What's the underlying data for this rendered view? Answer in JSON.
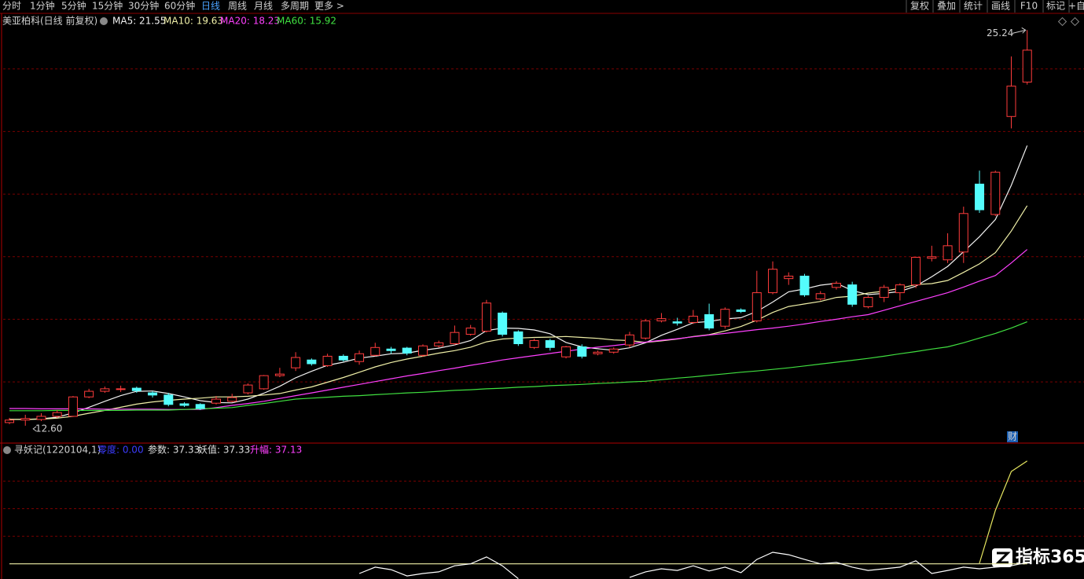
{
  "toolbar": {
    "left": [
      "分时",
      "1分钟",
      "5分钟",
      "15分钟",
      "30分钟",
      "60分钟",
      "日线",
      "周线",
      "月线",
      "多周期",
      "更多 >"
    ],
    "right": [
      "复权",
      "叠加",
      "统计",
      "画线",
      "F10",
      "标记",
      "+自"
    ]
  },
  "chart_data": [
    {
      "type": "candlestick",
      "title": "美亚柏科(日线 前复权)",
      "legend": [
        "MA5: 21.55",
        "MA10: 19.63",
        "MA20: 18.23",
        "MA60: 15.92"
      ],
      "up_color": "#ff3c3c",
      "down_color": "#54fcfc",
      "open": [
        12.7,
        12.78,
        12.8,
        12.9,
        12.9,
        13.52,
        13.7,
        13.78,
        13.8,
        13.65,
        13.58,
        13.3,
        13.28,
        13.32,
        13.38,
        13.65,
        13.78,
        14.2,
        14.45,
        14.7,
        14.52,
        14.82,
        14.65,
        14.85,
        15.05,
        15.08,
        14.85,
        15.15,
        15.22,
        15.52,
        15.62,
        16.2,
        15.6,
        15.1,
        15.32,
        14.8,
        15.12,
        14.9,
        14.95,
        15.18,
        15.4,
        15.95,
        15.92,
        15.9,
        16.15,
        15.78,
        16.3,
        15.95,
        16.85,
        17.3,
        17.38,
        16.65,
        17.02,
        17.1,
        16.4,
        16.7,
        16.85,
        17.1,
        17.95,
        17.9,
        18.15,
        20.32,
        19.35,
        22.48,
        23.58
      ],
      "high": [
        12.85,
        12.95,
        13.0,
        13.1,
        13.55,
        13.78,
        13.85,
        13.88,
        13.85,
        13.7,
        13.65,
        13.35,
        13.32,
        13.55,
        13.62,
        13.95,
        14.22,
        14.45,
        14.95,
        14.75,
        14.9,
        14.88,
        15.0,
        15.25,
        15.12,
        15.12,
        15.2,
        15.32,
        15.8,
        15.82,
        16.62,
        16.25,
        15.65,
        15.38,
        15.38,
        15.15,
        15.2,
        15.0,
        15.1,
        15.6,
        16.0,
        16.2,
        16.05,
        16.3,
        16.5,
        16.38,
        16.35,
        17.55,
        17.85,
        17.5,
        17.45,
        16.9,
        17.22,
        17.2,
        16.75,
        17.1,
        17.15,
        18.0,
        18.35,
        18.75,
        19.6,
        20.75,
        20.75,
        24.4,
        25.24
      ],
      "low": [
        12.65,
        12.6,
        12.75,
        12.85,
        12.88,
        13.48,
        13.65,
        13.68,
        13.65,
        13.5,
        13.22,
        13.2,
        13.1,
        13.28,
        13.35,
        13.6,
        13.75,
        14.15,
        14.35,
        14.52,
        14.48,
        14.65,
        14.55,
        14.82,
        14.9,
        14.85,
        14.8,
        15.1,
        15.18,
        15.48,
        15.58,
        15.45,
        15.15,
        15.05,
        15.0,
        14.75,
        14.75,
        14.85,
        14.9,
        15.1,
        15.35,
        15.9,
        15.8,
        15.85,
        15.65,
        15.7,
        16.2,
        15.9,
        16.8,
        17.1,
        16.72,
        16.6,
        16.95,
        16.4,
        16.35,
        16.55,
        16.6,
        17.0,
        17.85,
        17.8,
        17.8,
        19.4,
        19.3,
        22.1,
        23.5
      ],
      "close": [
        12.78,
        12.83,
        12.9,
        13.02,
        13.52,
        13.7,
        13.78,
        13.78,
        13.72,
        13.58,
        13.28,
        13.25,
        13.15,
        13.45,
        13.5,
        13.9,
        14.2,
        14.25,
        14.78,
        14.58,
        14.82,
        14.7,
        14.9,
        15.1,
        15.0,
        14.92,
        15.15,
        15.25,
        15.58,
        15.72,
        16.52,
        15.52,
        15.22,
        15.32,
        15.1,
        15.12,
        14.82,
        14.95,
        15.05,
        15.5,
        15.95,
        16.02,
        15.88,
        16.1,
        15.72,
        16.32,
        16.25,
        16.85,
        17.6,
        17.38,
        16.78,
        16.82,
        17.15,
        16.48,
        16.7,
        17.02,
        17.1,
        17.98,
        18.0,
        18.35,
        19.38,
        19.5,
        20.7,
        23.45,
        24.6
      ],
      "series": [
        {
          "color": "#f2f2f2",
          "values": [
            12.8,
            12.8,
            12.82,
            12.87,
            13.01,
            13.19,
            13.38,
            13.56,
            13.7,
            13.71,
            13.63,
            13.52,
            13.4,
            13.34,
            13.33,
            13.45,
            13.64,
            13.86,
            14.13,
            14.34,
            14.53,
            14.63,
            14.76,
            14.82,
            14.9,
            14.92,
            15.01,
            15.08,
            15.18,
            15.32,
            15.64,
            15.72,
            15.71,
            15.66,
            15.54,
            15.26,
            15.12,
            15.06,
            15.01,
            15.09,
            15.25,
            15.49,
            15.68,
            15.89,
            15.93,
            16.01,
            16.05,
            16.25,
            16.55,
            16.88,
            16.97,
            17.09,
            17.15,
            16.92,
            16.79,
            16.83,
            16.89,
            17.06,
            17.36,
            17.69,
            18.16,
            18.64,
            19.19,
            20.28,
            21.55
          ]
        },
        {
          "color": "#f0f0a8",
          "values": [
            12.8,
            12.8,
            12.81,
            12.84,
            12.9,
            13.0,
            13.09,
            13.19,
            13.29,
            13.36,
            13.41,
            13.45,
            13.48,
            13.52,
            13.52,
            13.54,
            13.58,
            13.63,
            13.74,
            13.84,
            13.99,
            14.14,
            14.31,
            14.48,
            14.62,
            14.73,
            14.82,
            14.92,
            15.0,
            15.11,
            15.28,
            15.37,
            15.4,
            15.42,
            15.43,
            15.45,
            15.42,
            15.39,
            15.34,
            15.32,
            15.26,
            15.31,
            15.37,
            15.45,
            15.51,
            15.63,
            15.77,
            15.97,
            16.22,
            16.41,
            16.49,
            16.57,
            16.7,
            16.74,
            16.84,
            16.9,
            16.99,
            17.11,
            17.14,
            17.24,
            17.5,
            17.77,
            18.13,
            18.82,
            19.63
          ]
        },
        {
          "color": "#ff40ff",
          "values": [
            13.15,
            13.15,
            13.14,
            13.14,
            13.14,
            13.14,
            13.13,
            13.13,
            13.13,
            13.13,
            13.12,
            13.12,
            13.12,
            13.18,
            13.25,
            13.31,
            13.38,
            13.47,
            13.56,
            13.65,
            13.74,
            13.83,
            13.92,
            14.01,
            14.1,
            14.19,
            14.27,
            14.36,
            14.44,
            14.53,
            14.61,
            14.7,
            14.77,
            14.84,
            14.91,
            14.98,
            15.05,
            15.11,
            15.16,
            15.22,
            15.27,
            15.33,
            15.38,
            15.44,
            15.5,
            15.55,
            15.61,
            15.67,
            15.72,
            15.78,
            15.85,
            15.93,
            16.0,
            16.08,
            16.15,
            16.29,
            16.43,
            16.57,
            16.71,
            16.85,
            17.03,
            17.22,
            17.4,
            17.8,
            18.23
          ]
        },
        {
          "color": "#40e040",
          "values": [
            13.08,
            13.08,
            13.08,
            13.09,
            13.09,
            13.09,
            13.09,
            13.09,
            13.1,
            13.1,
            13.1,
            13.12,
            13.14,
            13.16,
            13.18,
            13.25,
            13.31,
            13.38,
            13.45,
            13.48,
            13.51,
            13.54,
            13.56,
            13.59,
            13.62,
            13.65,
            13.67,
            13.7,
            13.73,
            13.75,
            13.78,
            13.8,
            13.83,
            13.85,
            13.88,
            13.9,
            13.92,
            13.95,
            13.97,
            14.0,
            14.02,
            14.07,
            14.12,
            14.16,
            14.21,
            14.26,
            14.31,
            14.35,
            14.4,
            14.45,
            14.51,
            14.57,
            14.63,
            14.69,
            14.75,
            14.82,
            14.9,
            14.97,
            15.05,
            15.12,
            15.25,
            15.4,
            15.55,
            15.72,
            15.92
          ]
        }
      ],
      "ylim": [
        12.07,
        25.65
      ],
      "yticks": [
        14,
        16,
        18,
        20,
        22,
        24
      ],
      "grid": true,
      "annotations": [
        "25.24",
        "12.60",
        "财"
      ]
    },
    {
      "type": "line",
      "title": "寻妖记(1220104,1)",
      "legend": [
        "零度: 0.00",
        "参数: 37.33",
        "妖值: 37.33",
        "升幅: 37.13"
      ],
      "series": [
        {
          "color": "#f0f0a8",
          "values": [
            0,
            0,
            0,
            0,
            0,
            0,
            0,
            0,
            0,
            0,
            0,
            0,
            0,
            0,
            0,
            0,
            0,
            0,
            0,
            0,
            0,
            0,
            0,
            0,
            0,
            0,
            0,
            0,
            0,
            0,
            0,
            0,
            0,
            0,
            0,
            0,
            0,
            0,
            0,
            0,
            0,
            0,
            0,
            0,
            0,
            0,
            0,
            0,
            0,
            0,
            0,
            0,
            0,
            0,
            0,
            0,
            0,
            0,
            0,
            0,
            0,
            0,
            0,
            0,
            0
          ]
        },
        {
          "color": "#ffffff",
          "values": [
            null,
            null,
            null,
            null,
            null,
            null,
            null,
            null,
            null,
            null,
            null,
            null,
            null,
            null,
            null,
            null,
            null,
            null,
            null,
            null,
            null,
            null,
            -3.5,
            -1.2,
            -2.1,
            -4.4,
            -3.5,
            -2.9,
            -0.7,
            0,
            2.5,
            -0.7,
            -5.4,
            null,
            null,
            null,
            null,
            null,
            null,
            -4.9,
            -2.9,
            -1.8,
            -2.4,
            -0.7,
            -2.6,
            -1.2,
            -3.2,
            1.6,
            4.2,
            3.3,
            1.6,
            0,
            0.5,
            -1.2,
            -2.4,
            -1.8,
            -1.2,
            1.1,
            -3.5,
            -2.4,
            -1.2,
            -1.8,
            -1.2,
            -0.7,
            0.5
          ]
        },
        {
          "color": "#e8e860",
          "values": [
            null,
            null,
            null,
            null,
            null,
            null,
            null,
            null,
            null,
            null,
            null,
            null,
            null,
            null,
            null,
            null,
            null,
            null,
            null,
            null,
            null,
            null,
            null,
            null,
            null,
            null,
            null,
            null,
            null,
            null,
            null,
            null,
            null,
            null,
            null,
            null,
            null,
            null,
            null,
            null,
            null,
            null,
            null,
            null,
            null,
            null,
            null,
            null,
            null,
            null,
            null,
            null,
            null,
            null,
            null,
            null,
            null,
            null,
            null,
            null,
            null,
            0.2,
            19.4,
            33.5,
            37.33
          ]
        }
      ],
      "ylim": [
        -5.5,
        43.5
      ],
      "yticks": [
        10,
        20,
        30
      ],
      "grid": true
    }
  ],
  "watermark": "指标365"
}
